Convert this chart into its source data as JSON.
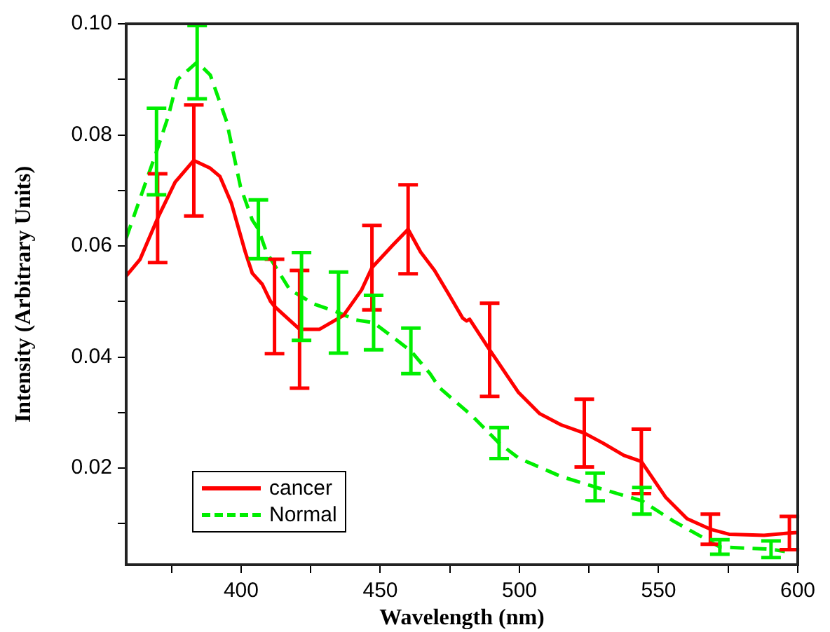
{
  "chart_data": {
    "type": "line",
    "xlabel": "Wavelength (nm)",
    "ylabel": "Intensity (Arbitrary Units)",
    "xlim": [
      358.7,
      600
    ],
    "ylim": [
      0.0026,
      0.1
    ],
    "xticks": [
      {
        "value": 375,
        "label": null
      },
      400,
      {
        "value": 425,
        "label": null
      },
      450,
      {
        "value": 475,
        "label": null
      },
      500,
      {
        "value": 525,
        "label": null
      },
      550,
      {
        "value": 575,
        "label": null
      },
      600
    ],
    "yticks": [
      {
        "value": 0.01,
        "label": null
      },
      0.02,
      {
        "value": 0.03,
        "label": null
      },
      0.04,
      {
        "value": 0.05,
        "label": null
      },
      0.06,
      {
        "value": 0.07,
        "label": null
      },
      0.08,
      {
        "value": 0.09,
        "label": null
      },
      {
        "value": 0.1,
        "label": "0.10"
      }
    ],
    "grid": false,
    "legend": "bottom left",
    "marker": "none",
    "series": [
      {
        "name": "cancer",
        "color": "#ff0000",
        "line_style": "solid",
        "x": [
          358.7,
          363.7,
          370,
          376.3,
          383,
          388.9,
          392.4,
          396.5,
          401.5,
          404,
          407.6,
          410.6,
          412,
          421,
          428.2,
          436.8,
          443.3,
          447,
          454.4,
          460,
          464.5,
          469.5,
          474.6,
          479.6,
          481,
          482.1,
          489.3,
          499.7,
          507.3,
          514.9,
          523.3,
          530,
          537.5,
          543.8,
          552.6,
          560.2,
          568.6,
          575.3,
          587.9,
          597,
          599.9
        ],
        "values": [
          0.0546,
          0.0576,
          0.065,
          0.0715,
          0.0754,
          0.074,
          0.0725,
          0.0677,
          0.0589,
          0.0551,
          0.0531,
          0.05,
          0.0491,
          0.045,
          0.045,
          0.0475,
          0.0521,
          0.0561,
          0.0601,
          0.063,
          0.0589,
          0.0556,
          0.0513,
          0.047,
          0.0465,
          0.0468,
          0.0413,
          0.0336,
          0.0298,
          0.0278,
          0.0263,
          0.0245,
          0.0223,
          0.0212,
          0.0147,
          0.0109,
          0.009,
          0.0081,
          0.0079,
          0.0083,
          0.0084
        ],
        "errors": [
          null,
          null,
          0.008,
          null,
          0.01,
          null,
          null,
          null,
          null,
          null,
          null,
          null,
          0.0085,
          0.0106,
          null,
          null,
          null,
          0.0076,
          null,
          0.008,
          null,
          null,
          null,
          null,
          null,
          null,
          0.0084,
          null,
          null,
          null,
          0.0061,
          null,
          null,
          0.0058,
          null,
          null,
          0.0027,
          null,
          null,
          0.003,
          null
        ]
      },
      {
        "name": "Normal",
        "color": "#00ee00",
        "line_style": "dashed",
        "x": [
          358.7,
          369.6,
          373.8,
          377.2,
          384.2,
          388.9,
          394.8,
          399.8,
          404,
          406.2,
          409.1,
          417.5,
          421.7,
          425.9,
          435,
          441,
          447.6,
          461,
          467.9,
          471.2,
          483,
          492.7,
          499.7,
          514.9,
          527.2,
          544,
          555.2,
          572,
          590.4,
          595.4
        ],
        "values": [
          0.0614,
          0.077,
          0.0833,
          0.09,
          0.0931,
          0.0908,
          0.0824,
          0.0706,
          0.0647,
          0.063,
          0.0589,
          0.0521,
          0.0509,
          0.0496,
          0.048,
          0.0467,
          0.0462,
          0.0411,
          0.037,
          0.0345,
          0.0294,
          0.0245,
          0.0218,
          0.0185,
          0.0166,
          0.0141,
          0.0105,
          0.0058,
          0.0054,
          0.005
        ],
        "errors": [
          null,
          0.0078,
          null,
          null,
          0.0066,
          null,
          null,
          null,
          null,
          0.0053,
          null,
          null,
          0.0079,
          null,
          0.0073,
          null,
          0.0049,
          0.0041,
          null,
          null,
          null,
          0.0028,
          null,
          null,
          0.0025,
          0.0024,
          null,
          0.0013,
          0.0015,
          null
        ]
      }
    ]
  }
}
